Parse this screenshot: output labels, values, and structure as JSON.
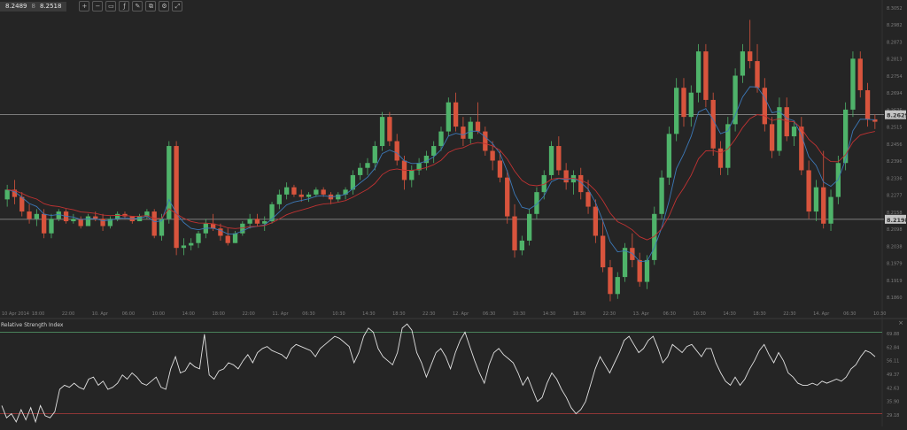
{
  "toolbar": {
    "bid": "8.2489",
    "mid_label": "8",
    "ask": "8.2518",
    "buttons": [
      {
        "name": "zoom-in-icon",
        "glyph": "+"
      },
      {
        "name": "zoom-out-icon",
        "glyph": "−"
      },
      {
        "name": "fit-icon",
        "glyph": "▭"
      },
      {
        "name": "indicators-icon",
        "glyph": "ƒ"
      },
      {
        "name": "drawing-icon",
        "glyph": "✎"
      },
      {
        "name": "objects-icon",
        "glyph": "⧉"
      },
      {
        "name": "settings-icon",
        "glyph": "⚙"
      },
      {
        "name": "expand-icon",
        "glyph": "⤢"
      }
    ]
  },
  "rsi_panel": {
    "title": "Relative Strength Index",
    "close": "×"
  },
  "colors": {
    "background": "#252525",
    "up_candle": "#4fb36a",
    "down_candle": "#d8543d",
    "ma_fast": "#3c78b7",
    "ma_slow": "#c03232",
    "rsi_line": "#e0e0e0",
    "rsi_upper": "#4f8f63",
    "rsi_lower": "#b13c3c",
    "hline": "#9a9a9a",
    "label_fg": "#333333",
    "label_bg": "#c4c4c4",
    "axis_text": "#7c7c7c"
  },
  "chart_data": [
    {
      "type": "candlestick",
      "title": "",
      "x_tick_labels": [
        "10 Apr 2014",
        "18:00",
        "22:00",
        "10. Apr",
        "06:00",
        "10:00",
        "14:00",
        "18:00",
        "22:00",
        "11. Apr",
        "06:30",
        "10:30",
        "14:30",
        "18:30",
        "22:30",
        "12. Apr",
        "06:30",
        "10:30",
        "14:30",
        "18:30",
        "22:30",
        "13. Apr",
        "06:30",
        "10:30",
        "14:30",
        "18:30",
        "22:30",
        "14. Apr",
        "06:30",
        "10:30"
      ],
      "y_tick_labels": [
        "8.3052",
        "8.2982",
        "8.2873",
        "8.2813",
        "8.2754",
        "8.2694",
        "8.2575",
        "8.2515",
        "8.2456",
        "8.2396",
        "8.2336",
        "8.2277",
        "8.2158",
        "8.2098",
        "8.2038",
        "8.1979",
        "8.1919",
        "8.1860"
      ],
      "ylim": [
        8.184,
        8.308
      ],
      "horizontal_lines": [
        8.2629,
        8.2198
      ],
      "price_labels": [
        "8.2629",
        "8.2198"
      ],
      "moving_averages": [
        "ma_fast",
        "ma_slow"
      ],
      "ohlc_approx": [
        [
          8.228,
          8.234,
          8.225,
          8.232
        ],
        [
          8.232,
          8.236,
          8.226,
          8.229
        ],
        [
          8.229,
          8.231,
          8.221,
          8.223
        ],
        [
          8.223,
          8.226,
          8.218,
          8.22
        ],
        [
          8.22,
          8.224,
          8.217,
          8.222
        ],
        [
          8.222,
          8.224,
          8.212,
          8.214
        ],
        [
          8.214,
          8.222,
          8.212,
          8.22
        ],
        [
          8.22,
          8.224,
          8.219,
          8.223
        ],
        [
          8.223,
          8.224,
          8.218,
          8.219
        ],
        [
          8.219,
          8.222,
          8.218,
          8.22
        ],
        [
          8.22,
          8.221,
          8.216,
          8.217
        ],
        [
          8.217,
          8.222,
          8.217,
          8.221
        ],
        [
          8.221,
          8.223,
          8.219,
          8.22
        ],
        [
          8.22,
          8.222,
          8.215,
          8.217
        ],
        [
          8.217,
          8.221,
          8.216,
          8.22
        ],
        [
          8.22,
          8.223,
          8.219,
          8.222
        ],
        [
          8.222,
          8.223,
          8.22,
          8.221
        ],
        [
          8.221,
          8.221,
          8.218,
          8.219
        ],
        [
          8.219,
          8.222,
          8.219,
          8.221
        ],
        [
          8.221,
          8.224,
          8.22,
          8.223
        ],
        [
          8.223,
          8.224,
          8.212,
          8.213
        ],
        [
          8.213,
          8.222,
          8.211,
          8.22
        ],
        [
          8.22,
          8.252,
          8.218,
          8.25
        ],
        [
          8.25,
          8.252,
          8.205,
          8.208
        ],
        [
          8.208,
          8.212,
          8.205,
          8.209
        ],
        [
          8.209,
          8.212,
          8.207,
          8.21
        ],
        [
          8.21,
          8.215,
          8.208,
          8.214
        ],
        [
          8.214,
          8.22,
          8.212,
          8.218
        ],
        [
          8.218,
          8.222,
          8.215,
          8.216
        ],
        [
          8.216,
          8.218,
          8.211,
          8.213
        ],
        [
          8.213,
          8.216,
          8.209,
          8.21
        ],
        [
          8.21,
          8.215,
          8.21,
          8.214
        ],
        [
          8.214,
          8.219,
          8.213,
          8.218
        ],
        [
          8.218,
          8.222,
          8.216,
          8.22
        ],
        [
          8.22,
          8.222,
          8.217,
          8.218
        ],
        [
          8.218,
          8.221,
          8.215,
          8.219
        ],
        [
          8.219,
          8.227,
          8.218,
          8.226
        ],
        [
          8.226,
          8.232,
          8.224,
          8.23
        ],
        [
          8.23,
          8.235,
          8.228,
          8.233
        ],
        [
          8.233,
          8.234,
          8.229,
          8.23
        ],
        [
          8.23,
          8.232,
          8.227,
          8.229
        ],
        [
          8.229,
          8.231,
          8.227,
          8.23
        ],
        [
          8.23,
          8.233,
          8.229,
          8.232
        ],
        [
          8.232,
          8.233,
          8.229,
          8.23
        ],
        [
          8.23,
          8.231,
          8.226,
          8.228
        ],
        [
          8.228,
          8.231,
          8.227,
          8.23
        ],
        [
          8.23,
          8.233,
          8.228,
          8.232
        ],
        [
          8.232,
          8.24,
          8.23,
          8.238
        ],
        [
          8.238,
          8.243,
          8.236,
          8.241
        ],
        [
          8.241,
          8.245,
          8.238,
          8.243
        ],
        [
          8.243,
          8.252,
          8.24,
          8.25
        ],
        [
          8.25,
          8.264,
          8.248,
          8.262
        ],
        [
          8.262,
          8.264,
          8.25,
          8.252
        ],
        [
          8.252,
          8.255,
          8.242,
          8.244
        ],
        [
          8.244,
          8.246,
          8.232,
          8.236
        ],
        [
          8.236,
          8.242,
          8.233,
          8.24
        ],
        [
          8.24,
          8.245,
          8.238,
          8.243
        ],
        [
          8.243,
          8.248,
          8.24,
          8.246
        ],
        [
          8.246,
          8.252,
          8.243,
          8.25
        ],
        [
          8.25,
          8.258,
          8.248,
          8.256
        ],
        [
          8.256,
          8.27,
          8.254,
          8.268
        ],
        [
          8.268,
          8.272,
          8.256,
          8.258
        ],
        [
          8.258,
          8.262,
          8.25,
          8.253
        ],
        [
          8.253,
          8.262,
          8.251,
          8.26
        ],
        [
          8.26,
          8.268,
          8.255,
          8.256
        ],
        [
          8.256,
          8.258,
          8.246,
          8.248
        ],
        [
          8.248,
          8.252,
          8.24,
          8.244
        ],
        [
          8.244,
          8.248,
          8.235,
          8.237
        ],
        [
          8.237,
          8.24,
          8.218,
          8.221
        ],
        [
          8.221,
          8.226,
          8.204,
          8.207
        ],
        [
          8.207,
          8.213,
          8.205,
          8.211
        ],
        [
          8.211,
          8.224,
          8.209,
          8.222
        ],
        [
          8.222,
          8.233,
          8.22,
          8.231
        ],
        [
          8.231,
          8.24,
          8.228,
          8.238
        ],
        [
          8.238,
          8.252,
          8.236,
          8.25
        ],
        [
          8.25,
          8.254,
          8.238,
          8.24
        ],
        [
          8.24,
          8.243,
          8.232,
          8.235
        ],
        [
          8.235,
          8.24,
          8.23,
          8.238
        ],
        [
          8.238,
          8.241,
          8.228,
          8.231
        ],
        [
          8.231,
          8.236,
          8.222,
          8.225
        ],
        [
          8.225,
          8.228,
          8.21,
          8.213
        ],
        [
          8.213,
          8.22,
          8.198,
          8.2
        ],
        [
          8.2,
          8.203,
          8.186,
          8.189
        ],
        [
          8.189,
          8.198,
          8.187,
          8.196
        ],
        [
          8.196,
          8.21,
          8.194,
          8.208
        ],
        [
          8.208,
          8.214,
          8.2,
          8.203
        ],
        [
          8.203,
          8.206,
          8.192,
          8.194
        ],
        [
          8.194,
          8.205,
          8.191,
          8.203
        ],
        [
          8.203,
          8.225,
          8.201,
          8.222
        ],
        [
          8.222,
          8.24,
          8.22,
          8.237
        ],
        [
          8.237,
          8.258,
          8.234,
          8.255
        ],
        [
          8.255,
          8.278,
          8.252,
          8.274
        ],
        [
          8.274,
          8.278,
          8.258,
          8.262
        ],
        [
          8.262,
          8.275,
          8.258,
          8.272
        ],
        [
          8.272,
          8.292,
          8.268,
          8.289
        ],
        [
          8.289,
          8.292,
          8.266,
          8.269
        ],
        [
          8.269,
          8.272,
          8.246,
          8.249
        ],
        [
          8.249,
          8.252,
          8.238,
          8.241
        ],
        [
          8.241,
          8.262,
          8.238,
          8.259
        ],
        [
          8.259,
          8.282,
          8.256,
          8.279
        ],
        [
          8.279,
          8.292,
          8.276,
          8.289
        ],
        [
          8.289,
          8.302,
          8.282,
          8.285
        ],
        [
          8.285,
          8.292,
          8.272,
          8.274
        ],
        [
          8.274,
          8.278,
          8.256,
          8.259
        ],
        [
          8.259,
          8.262,
          8.245,
          8.248
        ],
        [
          8.248,
          8.27,
          8.246,
          8.266
        ],
        [
          8.266,
          8.27,
          8.252,
          8.254
        ],
        [
          8.254,
          8.26,
          8.25,
          8.258
        ],
        [
          8.258,
          8.262,
          8.238,
          8.24
        ],
        [
          8.24,
          8.244,
          8.22,
          8.223
        ],
        [
          8.223,
          8.236,
          8.219,
          8.233
        ],
        [
          8.233,
          8.248,
          8.216,
          8.218
        ],
        [
          8.218,
          8.232,
          8.215,
          8.229
        ],
        [
          8.229,
          8.246,
          8.226,
          8.243
        ],
        [
          8.243,
          8.268,
          8.24,
          8.265
        ],
        [
          8.265,
          8.289,
          8.262,
          8.286
        ],
        [
          8.286,
          8.289,
          8.27,
          8.273
        ],
        [
          8.273,
          8.276,
          8.258,
          8.261
        ],
        [
          8.261,
          8.263,
          8.257,
          8.26
        ]
      ]
    },
    {
      "type": "line",
      "title": "Relative Strength Index",
      "y_tick_labels": [
        "69.88",
        "62.84",
        "56.11",
        "49.37",
        "42.63",
        "35.90",
        "29.18"
      ],
      "ylim": [
        25.5,
        71.5
      ],
      "levels": [
        70,
        30
      ],
      "values": [
        34,
        28,
        30,
        26,
        32,
        27,
        33,
        26,
        34,
        29,
        28,
        31,
        42,
        44,
        43,
        45,
        43,
        42,
        47,
        48,
        44,
        46,
        42,
        43,
        45,
        49,
        47,
        50,
        48,
        45,
        44,
        46,
        48,
        43,
        42,
        52,
        58,
        50,
        51,
        55,
        53,
        52,
        69,
        49,
        47,
        51,
        52,
        55,
        54,
        52,
        56,
        59,
        55,
        60,
        62,
        63,
        61,
        60,
        59,
        57,
        62,
        64,
        63,
        62,
        61,
        58,
        62,
        64,
        66,
        68,
        67,
        65,
        63,
        55,
        60,
        68,
        72,
        70,
        62,
        58,
        56,
        54,
        60,
        72,
        74,
        71,
        60,
        55,
        48,
        54,
        60,
        62,
        58,
        52,
        60,
        66,
        70,
        63,
        56,
        50,
        45,
        54,
        60,
        62,
        59,
        57,
        55,
        50,
        44,
        48,
        42,
        36,
        38,
        45,
        50,
        47,
        42,
        38,
        33,
        30,
        32,
        36,
        44,
        52,
        58,
        54,
        50,
        55,
        60,
        66,
        68,
        64,
        60,
        62,
        66,
        68,
        62,
        55,
        58,
        64,
        62,
        60,
        63,
        64,
        61,
        58,
        62,
        62,
        55,
        50,
        46,
        44,
        48,
        44,
        47,
        52,
        56,
        61,
        64,
        59,
        55,
        60,
        56,
        50,
        48,
        45,
        44,
        44,
        45,
        44,
        46,
        45,
        46,
        47,
        46,
        48,
        52,
        54,
        58,
        61,
        60,
        58
      ]
    }
  ]
}
